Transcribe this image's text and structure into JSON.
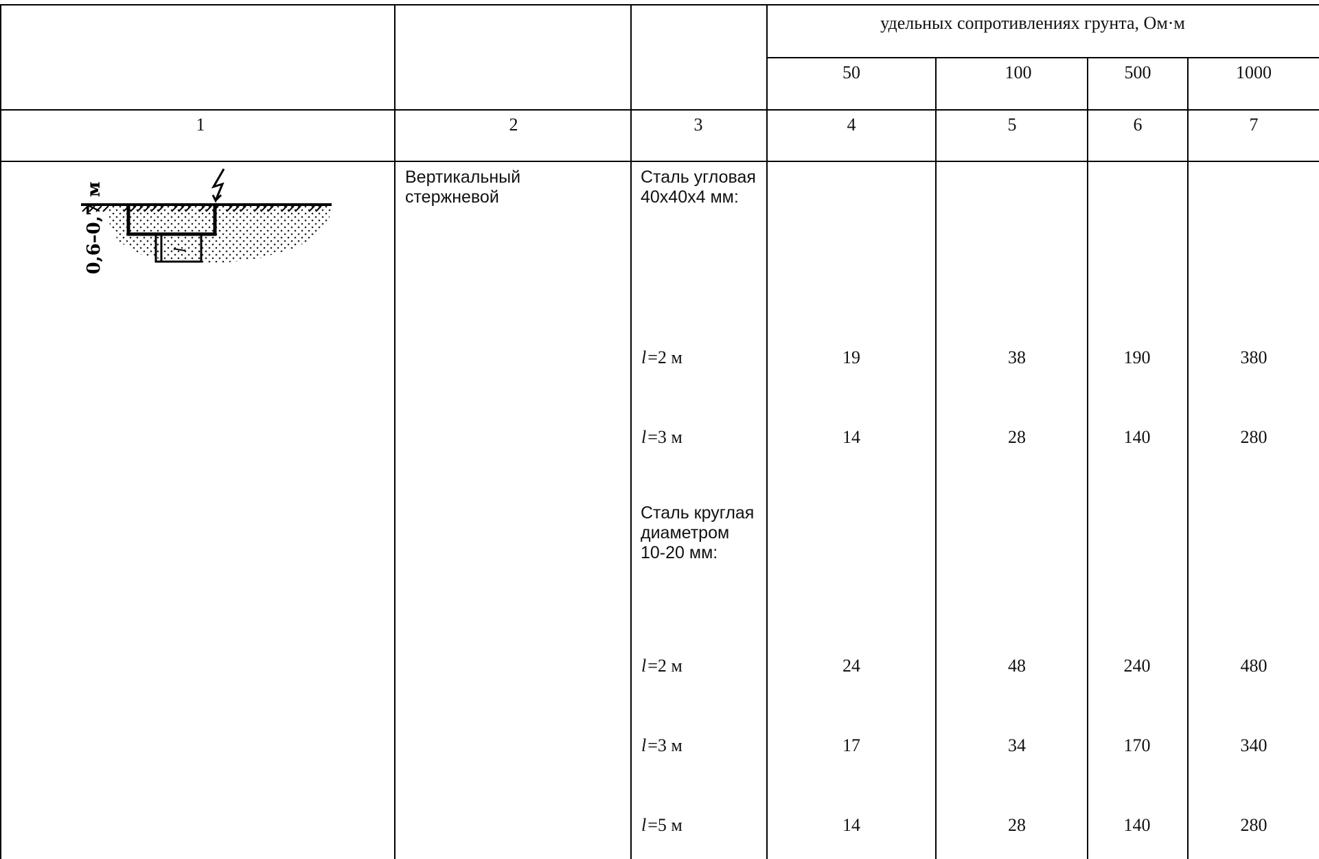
{
  "header": {
    "resistivity_caption": "удельных сопротивлениях грунта, Ом·м",
    "resistivity_values": [
      "50",
      "100",
      "500",
      "1000"
    ]
  },
  "column_numbers": [
    "1",
    "2",
    "3",
    "4",
    "5",
    "6",
    "7"
  ],
  "diagram": {
    "depth_label": "0,6–0,7 м",
    "rod_label": "l"
  },
  "row": {
    "type": "Вертикальный стержневой",
    "groups": [
      {
        "material": "Сталь угловая 40x40x4 мм:",
        "items": [
          {
            "var": "l",
            "length": "=2 м",
            "values": [
              "19",
              "38",
              "190",
              "380"
            ]
          },
          {
            "var": "l",
            "length": "=3 м",
            "values": [
              "14",
              "28",
              "140",
              "280"
            ]
          }
        ]
      },
      {
        "material": "Сталь круглая диаметром 10-20 мм:",
        "items": [
          {
            "var": "l",
            "length": "=2 м",
            "values": [
              "24",
              "48",
              "240",
              "480"
            ]
          },
          {
            "var": "l",
            "length": "=3 м",
            "values": [
              "17",
              "34",
              "170",
              "340"
            ]
          },
          {
            "var": "l",
            "length": "=5 м",
            "values": [
              "14",
              "28",
              "140",
              "280"
            ]
          }
        ]
      }
    ]
  }
}
